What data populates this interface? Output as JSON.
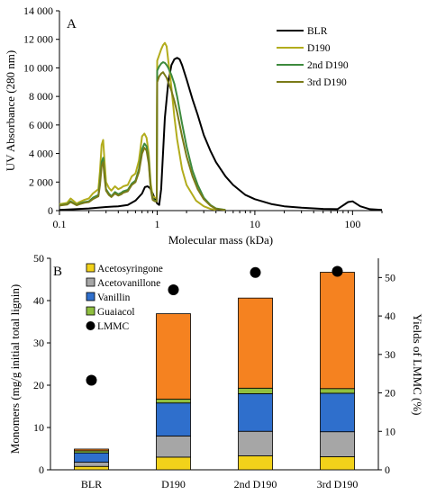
{
  "chart_data": [
    {
      "panel": "A",
      "type": "line",
      "xlabel": "Molecular mass (kDa)",
      "ylabel": "UV Absorbance (280 nm)",
      "x_scale": "log",
      "xlim": [
        0.1,
        200
      ],
      "ylim": [
        0,
        14000
      ],
      "x_ticks": [
        0.1,
        1,
        10,
        100
      ],
      "x_tick_labels": [
        "0.1",
        "1",
        "10",
        "100"
      ],
      "y_ticks": [
        0,
        2000,
        4000,
        6000,
        8000,
        10000,
        12000,
        14000
      ],
      "y_tick_labels": [
        "0",
        "2 000",
        "4 000",
        "6 000",
        "8 000",
        "10 000",
        "12 000",
        "14 000"
      ],
      "grid": false,
      "legend_position": "top-right",
      "series": [
        {
          "name": "BLR",
          "color": "#000000",
          "x": [
            0.1,
            0.2,
            0.3,
            0.4,
            0.5,
            0.6,
            0.7,
            0.75,
            0.8,
            0.85,
            0.9,
            0.95,
            1.0,
            1.05,
            1.1,
            1.2,
            1.3,
            1.4,
            1.5,
            1.6,
            1.7,
            1.8,
            2.0,
            2.3,
            2.6,
            3.0,
            3.5,
            4.0,
            5.0,
            6.0,
            8.0,
            10,
            15,
            20,
            30,
            50,
            70,
            90,
            100,
            120,
            150,
            200
          ],
          "y": [
            50,
            150,
            250,
            300,
            400,
            700,
            1200,
            1650,
            1700,
            1550,
            1200,
            800,
            500,
            400,
            1500,
            6500,
            9000,
            10200,
            10600,
            10700,
            10600,
            10200,
            9200,
            7800,
            6700,
            5300,
            4200,
            3400,
            2400,
            1800,
            1100,
            800,
            450,
            300,
            200,
            120,
            100,
            600,
            650,
            300,
            100,
            50
          ]
        },
        {
          "name": "D190",
          "color": "#b2ac1c",
          "x": [
            0.1,
            0.12,
            0.13,
            0.15,
            0.16,
            0.18,
            0.2,
            0.22,
            0.25,
            0.26,
            0.27,
            0.28,
            0.29,
            0.3,
            0.32,
            0.34,
            0.37,
            0.4,
            0.43,
            0.45,
            0.5,
            0.55,
            0.6,
            0.65,
            0.7,
            0.74,
            0.78,
            0.82,
            0.86,
            0.9,
            0.95,
            0.99,
            1.0,
            1.05,
            1.1,
            1.15,
            1.2,
            1.25,
            1.3,
            1.35,
            1.4,
            1.5,
            1.6,
            1.8,
            2.0,
            2.5,
            3.0,
            3.5,
            4.0
          ],
          "y": [
            450,
            550,
            850,
            500,
            600,
            750,
            850,
            1200,
            1500,
            2800,
            4600,
            4950,
            3400,
            2000,
            1600,
            1400,
            1700,
            1500,
            1600,
            1700,
            1800,
            2400,
            2600,
            3500,
            5200,
            5400,
            5100,
            4000,
            1900,
            1000,
            900,
            900,
            10500,
            10900,
            11300,
            11600,
            11750,
            11500,
            10500,
            9600,
            8600,
            6600,
            5000,
            2900,
            1800,
            700,
            300,
            120,
            50
          ]
        },
        {
          "name": "2nd D190",
          "color": "#3d8a3d",
          "x": [
            0.1,
            0.12,
            0.13,
            0.15,
            0.16,
            0.18,
            0.2,
            0.22,
            0.25,
            0.26,
            0.27,
            0.28,
            0.29,
            0.3,
            0.32,
            0.34,
            0.37,
            0.4,
            0.43,
            0.45,
            0.5,
            0.55,
            0.6,
            0.65,
            0.7,
            0.74,
            0.78,
            0.82,
            0.86,
            0.9,
            0.95,
            0.99,
            1.0,
            1.05,
            1.1,
            1.15,
            1.2,
            1.25,
            1.3,
            1.4,
            1.5,
            1.6,
            1.8,
            2.0,
            2.3,
            2.6,
            3.0,
            3.5,
            4.0,
            5.0
          ],
          "y": [
            380,
            450,
            650,
            400,
            500,
            600,
            650,
            900,
            1100,
            2000,
            3400,
            3700,
            2500,
            1500,
            1200,
            1000,
            1300,
            1150,
            1250,
            1350,
            1450,
            1900,
            2100,
            2900,
            4300,
            4700,
            4500,
            3500,
            1600,
            800,
            700,
            700,
            9800,
            10100,
            10300,
            10400,
            10350,
            10200,
            10000,
            9500,
            8900,
            8000,
            6100,
            4500,
            2800,
            1800,
            900,
            400,
            150,
            50
          ]
        },
        {
          "name": "3rd D190",
          "color": "#7a7a18",
          "x": [
            0.1,
            0.12,
            0.13,
            0.15,
            0.16,
            0.18,
            0.2,
            0.22,
            0.25,
            0.26,
            0.27,
            0.28,
            0.29,
            0.3,
            0.32,
            0.34,
            0.37,
            0.4,
            0.43,
            0.45,
            0.5,
            0.55,
            0.6,
            0.65,
            0.7,
            0.74,
            0.78,
            0.82,
            0.86,
            0.9,
            0.95,
            0.99,
            1.0,
            1.05,
            1.1,
            1.15,
            1.2,
            1.25,
            1.3,
            1.4,
            1.5,
            1.6,
            1.8,
            2.0,
            2.3,
            2.6,
            3.0,
            3.5,
            4.0,
            5.0
          ],
          "y": [
            350,
            420,
            600,
            380,
            450,
            550,
            600,
            800,
            1000,
            1800,
            3100,
            3400,
            2300,
            1400,
            1100,
            950,
            1200,
            1050,
            1150,
            1250,
            1350,
            1800,
            2000,
            2700,
            4000,
            4400,
            4200,
            3300,
            1500,
            750,
            650,
            650,
            9000,
            9400,
            9600,
            9700,
            9500,
            9300,
            9000,
            8400,
            7700,
            6900,
            5200,
            3800,
            2400,
            1500,
            800,
            350,
            120,
            40
          ]
        }
      ]
    },
    {
      "panel": "B",
      "type": "bar",
      "stacked": true,
      "categories": [
        "BLR",
        "D190",
        "2nd D190",
        "3rd D190"
      ],
      "ylabel": "Monomers (mg/g initial total lignin)",
      "y2label": "Yields of LMMC (%)",
      "ylim": [
        0,
        50
      ],
      "y2lim": [
        0,
        55
      ],
      "y_ticks": [
        0,
        10,
        20,
        30,
        40,
        50
      ],
      "y2_ticks": [
        0,
        10,
        20,
        30,
        40,
        50
      ],
      "legend_position": "top-left",
      "series": [
        {
          "name": "Acetosyringone",
          "color": "#f2d21a",
          "values": [
            0.8,
            3.0,
            3.3,
            3.1
          ]
        },
        {
          "name": "Acetovanillone",
          "color": "#a6a6a6",
          "values": [
            1.0,
            5.0,
            5.8,
            5.9
          ]
        },
        {
          "name": "Vanillin",
          "color": "#2f6fcc",
          "values": [
            2.2,
            7.8,
            8.9,
            9.1
          ]
        },
        {
          "name": "Guaiacol",
          "color": "#8fbf3f",
          "values": [
            0.5,
            0.9,
            1.3,
            1.1
          ]
        },
        {
          "name": "",
          "color": "#f58220",
          "values": [
            0.4,
            20.2,
            21.3,
            27.5
          ]
        }
      ],
      "markers": {
        "name": "LMMC",
        "color": "#000000",
        "axis": "right",
        "values": [
          23.3,
          46.8,
          51.3,
          51.6
        ]
      }
    }
  ],
  "panel_labels": {
    "a": "A",
    "b": "B"
  }
}
